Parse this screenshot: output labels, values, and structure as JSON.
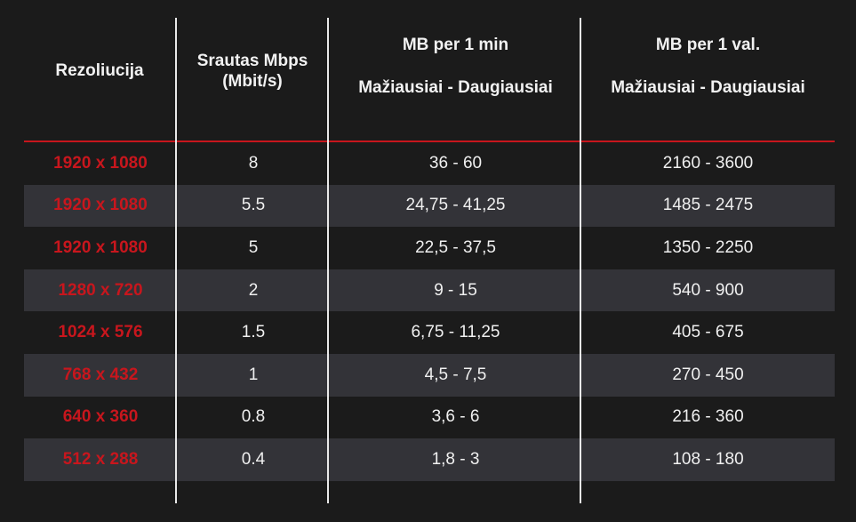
{
  "table": {
    "headers": {
      "resolution": "Rezoliucija",
      "bitrate_line1": "Srautas Mbps",
      "bitrate_line2": "(Mbit/s)",
      "per_min_title": "MB per 1 min",
      "per_min_sub": "Mažiausiai - Daugiausiai",
      "per_hour_title": "MB per 1 val.",
      "per_hour_sub": "Mažiausiai - Daugiausiai"
    },
    "rows": [
      {
        "resolution": "1920 x 1080",
        "bitrate": "8",
        "per_min": "36 - 60",
        "per_hour": "2160 - 3600"
      },
      {
        "resolution": "1920 x 1080",
        "bitrate": "5.5",
        "per_min": "24,75 - 41,25",
        "per_hour": "1485 - 2475"
      },
      {
        "resolution": "1920 x 1080",
        "bitrate": "5",
        "per_min": "22,5 - 37,5",
        "per_hour": "1350 - 2250"
      },
      {
        "resolution": "1280 x 720",
        "bitrate": "2",
        "per_min": "9 - 15",
        "per_hour": "540 - 900"
      },
      {
        "resolution": "1024 x 576",
        "bitrate": "1.5",
        "per_min": "6,75 - 11,25",
        "per_hour": "405 - 675"
      },
      {
        "resolution": "768 x 432",
        "bitrate": "1",
        "per_min": "4,5 - 7,5",
        "per_hour": "270 - 450"
      },
      {
        "resolution": "640 x 360",
        "bitrate": "0.8",
        "per_min": "3,6 - 6",
        "per_hour": "216 - 360"
      },
      {
        "resolution": "512 x 288",
        "bitrate": "0.4",
        "per_min": "1,8 - 3",
        "per_hour": "108 - 180"
      }
    ]
  },
  "colors": {
    "background": "#1b1b1b",
    "row_shade": "#333338",
    "accent_red": "#c8161d",
    "text": "#f0f0f0",
    "divider": "#e9e9e9"
  }
}
